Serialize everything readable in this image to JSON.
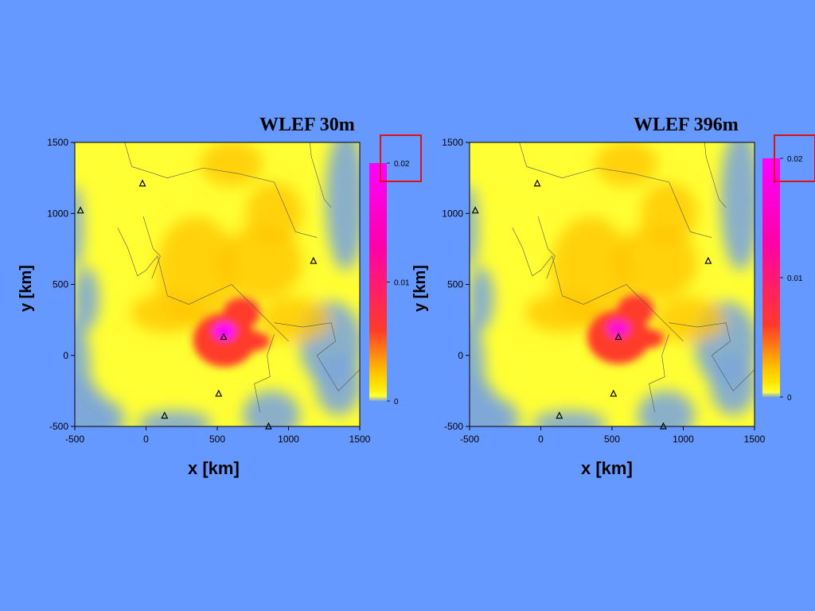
{
  "colors": {
    "background": "#6699ff",
    "highlight_box": "#dd1111",
    "colormap": [
      "#7da7d9",
      "#ffff33",
      "#ffe600",
      "#ffc300",
      "#ff3a2a",
      "#ff00aa",
      "#ff00ff"
    ]
  },
  "chart_data": [
    {
      "type": "heatmap",
      "title": "WLEF 30m",
      "xlabel": "x [km]",
      "ylabel": "y [km]",
      "xlim": [
        -500,
        1500
      ],
      "ylim": [
        -500,
        1500
      ],
      "xticks": [
        "-500",
        "0",
        "500",
        "1000",
        "1500"
      ],
      "yticks": [
        "-500",
        "0",
        "500",
        "1000",
        "1500"
      ],
      "colorbar": {
        "range": [
          0,
          0.02
        ],
        "ticks": [
          "0",
          "0.01",
          "0.02"
        ],
        "highlighted_tick": "0.02"
      },
      "hotspot": {
        "x": 550,
        "y": 130,
        "peak_value": 0.02
      },
      "markers": [
        {
          "x": -460,
          "y": 1020
        },
        {
          "x": -25,
          "y": 1210
        },
        {
          "x": 1175,
          "y": 665
        },
        {
          "x": 545,
          "y": 130
        },
        {
          "x": 510,
          "y": -270
        },
        {
          "x": 130,
          "y": -425
        },
        {
          "x": 860,
          "y": -500
        }
      ],
      "grid": false
    },
    {
      "type": "heatmap",
      "title": "WLEF 396m",
      "xlabel": "x [km]",
      "ylabel": "y [km]",
      "xlim": [
        -500,
        1500
      ],
      "ylim": [
        -500,
        1500
      ],
      "xticks": [
        "-500",
        "0",
        "500",
        "1000",
        "1500"
      ],
      "yticks": [
        "-500",
        "0",
        "500",
        "1000",
        "1500"
      ],
      "colorbar": {
        "range": [
          0,
          0.02
        ],
        "ticks": [
          "0",
          "0.01",
          "0.02"
        ],
        "highlighted_tick": "0.02"
      },
      "hotspot": {
        "x": 545,
        "y": 150,
        "peak_value": 0.016
      },
      "markers": [
        {
          "x": -460,
          "y": 1020
        },
        {
          "x": -25,
          "y": 1210
        },
        {
          "x": 1175,
          "y": 665
        },
        {
          "x": 545,
          "y": 130
        },
        {
          "x": 510,
          "y": -270
        },
        {
          "x": 130,
          "y": -425
        },
        {
          "x": 860,
          "y": -500
        }
      ],
      "grid": false
    }
  ]
}
